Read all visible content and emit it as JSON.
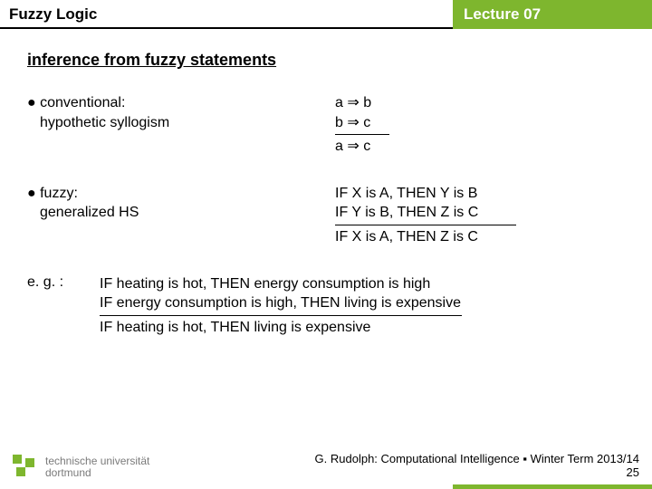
{
  "header": {
    "left": "Fuzzy Logic",
    "right": "Lecture 07"
  },
  "section_title": "inference from fuzzy statements",
  "conventional": {
    "label": "● conventional:",
    "sub": "hypothetic syllogism",
    "premise1": "a ⇒ b",
    "premise2": "b ⇒ c",
    "conclusion": "a ⇒ c"
  },
  "fuzzy": {
    "label": "● fuzzy:",
    "sub": "generalized HS",
    "premise1": "IF X is A, THEN Y is B",
    "premise2": "IF Y is B, THEN Z is C",
    "conclusion": "IF X is A, THEN Z is C"
  },
  "example": {
    "label": "e. g. :",
    "premise1": "IF heating is hot, THEN energy consumption is high",
    "premise2": "IF energy consumption is high, THEN living is expensive",
    "conclusion": "IF heating is hot, THEN living is expensive"
  },
  "footer": {
    "line1": "G. Rudolph: Computational Intelligence ▪ Winter Term 2013/14",
    "line2": "25"
  },
  "logo": {
    "line1": "technische universität",
    "line2": "dortmund"
  }
}
